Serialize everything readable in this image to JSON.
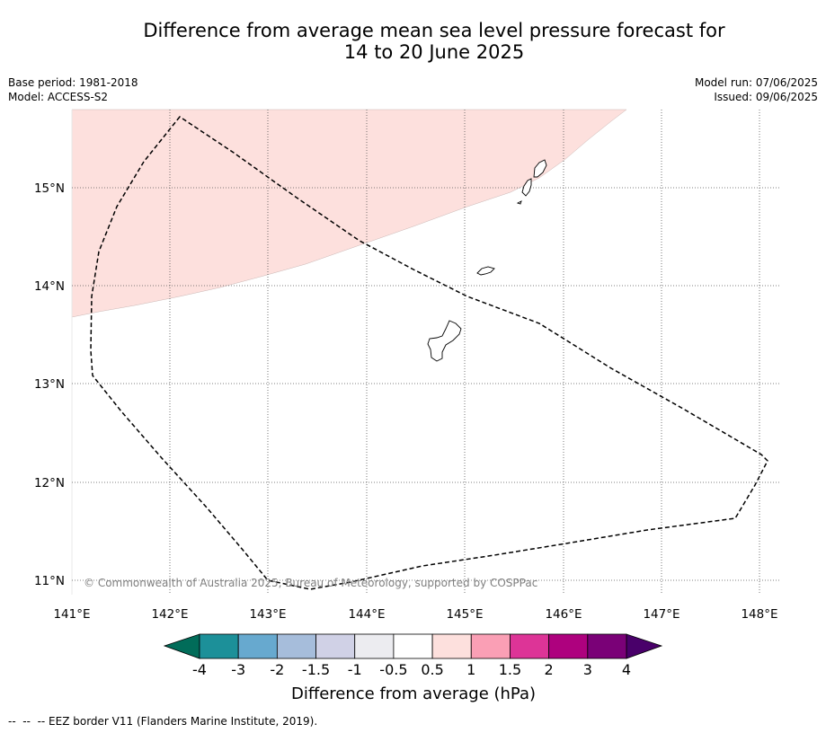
{
  "title_line1": "Difference from average mean sea level pressure forecast for",
  "title_line2": "14 to 20 June 2025",
  "base_period": "Base period: 1981-2018",
  "model": "Model: ACCESS-S2",
  "model_run": "Model run: 07/06/2025",
  "issued": "Issued: 09/06/2025",
  "credit": "© Commonwealth of Australia 2025, Bureau of Meteorology, supported by COSPPac",
  "footer_legend": "--  --  -- EEZ border V11 (Flanders Marine Institute, 2019).",
  "map": {
    "lon_range": [
      141.0,
      148.2
    ],
    "lat_range": [
      10.8,
      15.8
    ],
    "lon_ticks": [
      "141°E",
      "142°E",
      "143°E",
      "144°E",
      "145°E",
      "146°E",
      "147°E",
      "148°E"
    ],
    "lat_ticks": [
      "15°N",
      "14°N",
      "13°N",
      "12°N",
      "11°N"
    ],
    "anomaly_region": {
      "category": "0.5 to 1",
      "color": "#fde0dd"
    }
  },
  "colorbar": {
    "label": "Difference from average (hPa)",
    "tick_labels": [
      "-4",
      "-3",
      "-2",
      "-1.5",
      "-1",
      "-0.5",
      "0.5",
      "1",
      "1.5",
      "2",
      "3",
      "4"
    ],
    "under_color": "#016c59",
    "over_color": "#49006a",
    "colors": [
      "#1c9099",
      "#67a9cf",
      "#a6bddb",
      "#d0d1e6",
      "#ececf0",
      "#ffffff",
      "#fde0dd",
      "#fa9fb5",
      "#dd3497",
      "#ae017e",
      "#7a0177"
    ]
  }
}
